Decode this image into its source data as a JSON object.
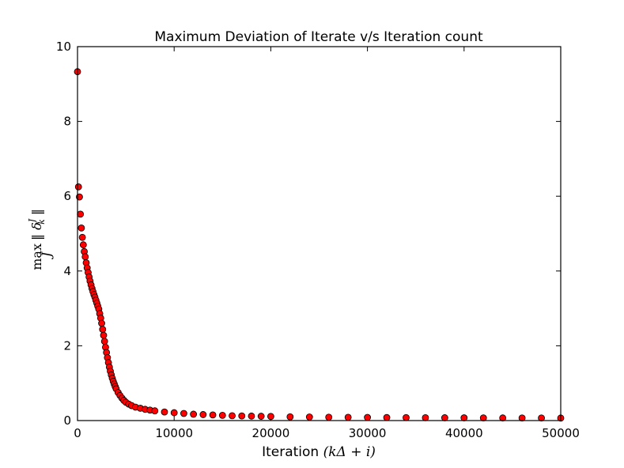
{
  "chart_data": {
    "type": "scatter",
    "title": "Maximum Deviation of Iterate v/s Iteration count",
    "xlabel_text": "Iteration ",
    "xlabel_math": "(kΔ + i)",
    "ylabel_op": "max",
    "ylabel_sub": "J",
    "ylabel_expr": "‖ δ",
    "ylabel_sup": "J",
    "ylabel_idx": "k",
    "ylabel_end": " ‖",
    "xlim": [
      0,
      50000
    ],
    "ylim": [
      0,
      10
    ],
    "xticks": [
      0,
      10000,
      20000,
      30000,
      40000,
      50000
    ],
    "xtick_labels": [
      "0",
      "10000",
      "20000",
      "30000",
      "40000",
      "50000"
    ],
    "yticks": [
      0,
      2,
      4,
      6,
      8,
      10
    ],
    "ytick_labels": [
      "0",
      "2",
      "4",
      "6",
      "8",
      "10"
    ],
    "grid": false,
    "marker_color": "#ff0000",
    "marker_edge": "#000000",
    "series": [
      {
        "x": [
          0,
          100,
          200,
          300,
          400,
          500,
          600,
          700,
          800,
          900,
          1000,
          1100,
          1200,
          1300,
          1400,
          1500,
          1600,
          1700,
          1800,
          1900,
          2000,
          2100,
          2200,
          2300,
          2400,
          2500,
          2600,
          2700,
          2800,
          2900,
          3000,
          3100,
          3200,
          3300,
          3400,
          3500,
          3600,
          3700,
          3800,
          3900,
          4000,
          4200,
          4400,
          4600,
          4800,
          5000,
          5300,
          5600,
          6000,
          6500,
          7000,
          7500,
          8000,
          9000,
          10000,
          11000,
          12000,
          13000,
          14000,
          15000,
          16000,
          17000,
          18000,
          19000,
          20000,
          22000,
          24000,
          26000,
          28000,
          30000,
          32000,
          34000,
          36000,
          38000,
          40000,
          42000,
          44000,
          46000,
          48000,
          50000
        ],
        "y": [
          9.33,
          6.25,
          5.98,
          5.52,
          5.15,
          4.9,
          4.7,
          4.52,
          4.38,
          4.22,
          4.08,
          3.96,
          3.84,
          3.73,
          3.63,
          3.53,
          3.45,
          3.37,
          3.3,
          3.22,
          3.14,
          3.06,
          2.98,
          2.86,
          2.74,
          2.6,
          2.44,
          2.28,
          2.12,
          1.96,
          1.82,
          1.68,
          1.55,
          1.43,
          1.32,
          1.22,
          1.13,
          1.05,
          0.98,
          0.91,
          0.85,
          0.75,
          0.67,
          0.6,
          0.54,
          0.49,
          0.44,
          0.4,
          0.36,
          0.33,
          0.3,
          0.28,
          0.26,
          0.23,
          0.21,
          0.19,
          0.17,
          0.16,
          0.15,
          0.14,
          0.13,
          0.125,
          0.12,
          0.115,
          0.11,
          0.1,
          0.095,
          0.09,
          0.087,
          0.084,
          0.081,
          0.079,
          0.077,
          0.075,
          0.073,
          0.071,
          0.07,
          0.069,
          0.068,
          0.067
        ]
      }
    ]
  }
}
